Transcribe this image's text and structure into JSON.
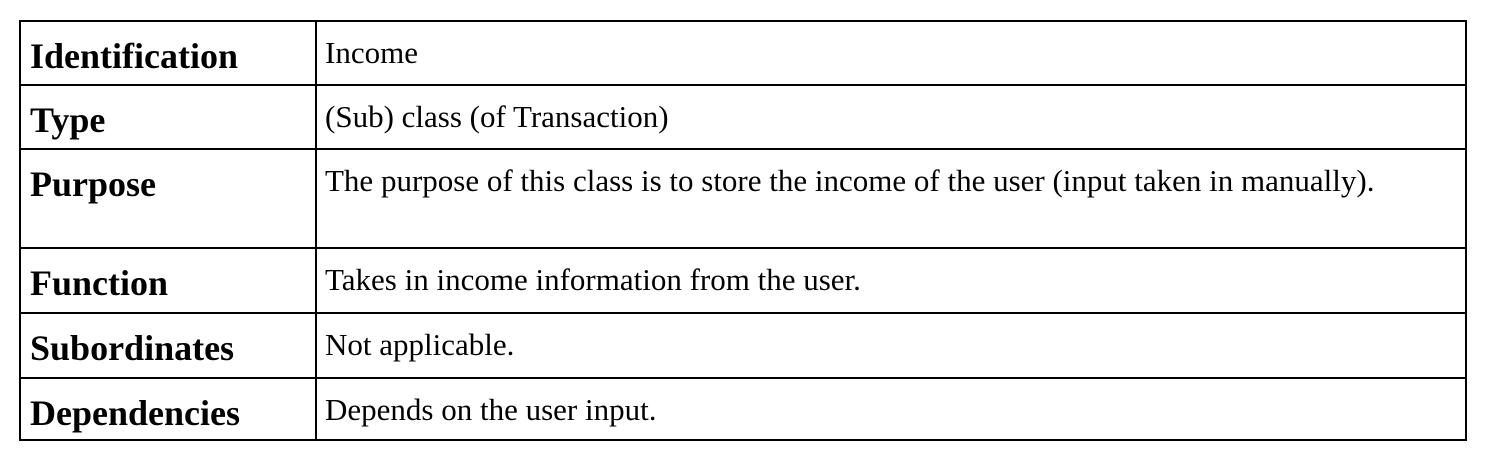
{
  "table": {
    "rows": [
      {
        "label": "Identification",
        "value": "Income"
      },
      {
        "label": "Type",
        "value": "(Sub) class (of Transaction)"
      },
      {
        "label": "Purpose",
        "value": "The purpose of this class is to store the income of the user (input taken in manually)."
      },
      {
        "label": "Function",
        "value": "Takes in income information from the user."
      },
      {
        "label": "Subordinates",
        "value": "Not applicable."
      },
      {
        "label": "Dependencies",
        "value": "Depends on the user input."
      }
    ]
  }
}
